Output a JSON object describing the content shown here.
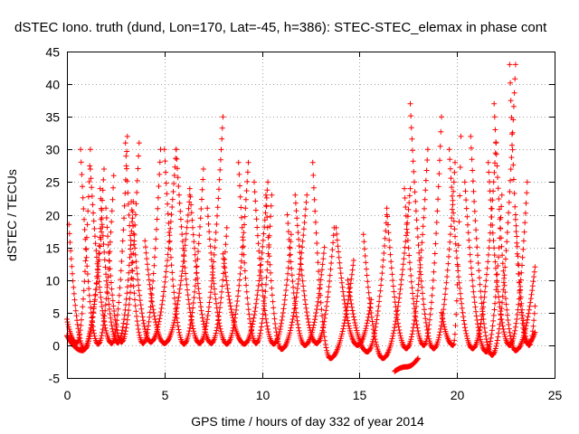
{
  "chart_data": {
    "type": "scatter",
    "title": "dSTEC Iono. truth (dund, Lon=170, Lat=-45, h=386): STEC-STEC_elemax in phase cont",
    "xlabel": "GPS time / hours of day 332 of year 2014",
    "ylabel": "dSTEC  / TECUs",
    "xlim": [
      0,
      25
    ],
    "ylim": [
      -5,
      45
    ],
    "xticks": [
      "0",
      "5",
      "10",
      "15",
      "20",
      "25"
    ],
    "yticks": [
      "-5",
      "0",
      "5",
      "10",
      "15",
      "20",
      "25",
      "30",
      "35",
      "40",
      "45"
    ],
    "grid": true,
    "marker": "+",
    "color": "#ff0000",
    "arcs": [
      [
        0.0,
        4,
        0.5,
        0.3,
        1.2,
        30
      ],
      [
        0.0,
        1.5,
        0.8,
        -0.8,
        1.8,
        18.5
      ],
      [
        0.1,
        18.5,
        0.9,
        -0.6,
        1.9,
        27
      ],
      [
        0.7,
        30,
        1.6,
        0.2,
        2.4,
        26
      ],
      [
        1.2,
        27,
        2.3,
        0.3,
        3.1,
        32
      ],
      [
        1.7,
        24,
        2.6,
        0.4,
        3.4,
        22
      ],
      [
        2.0,
        21,
        2.8,
        0.5,
        3.7,
        31
      ],
      [
        3.0,
        31,
        3.9,
        0.3,
        4.8,
        30
      ],
      [
        3.3,
        22,
        4.3,
        0.5,
        5.6,
        30
      ],
      [
        4.0,
        16,
        5.0,
        0.3,
        6.3,
        23
      ],
      [
        5.0,
        30,
        6.0,
        0.2,
        7.0,
        27
      ],
      [
        5.6,
        30,
        6.8,
        0.3,
        8.0,
        35
      ],
      [
        6.3,
        24,
        7.4,
        0.3,
        8.2,
        18
      ],
      [
        7.2,
        21,
        8.2,
        0.2,
        9.3,
        28
      ],
      [
        8.0,
        14,
        9.1,
        0.2,
        10.3,
        25
      ],
      [
        8.8,
        28,
        9.7,
        0.3,
        10.5,
        23
      ],
      [
        9.6,
        25,
        10.6,
        0.2,
        11.5,
        17
      ],
      [
        10.2,
        23,
        11.0,
        -0.6,
        12.3,
        23
      ],
      [
        11.3,
        20,
        12.2,
        0.0,
        13.2,
        15
      ],
      [
        11.7,
        23,
        12.8,
        0.3,
        13.7,
        18
      ],
      [
        12.6,
        28,
        13.5,
        -2.0,
        14.7,
        13
      ],
      [
        13.8,
        18,
        14.9,
        0.0,
        15.6,
        7
      ],
      [
        14.4,
        10,
        15.4,
        -1.0,
        16.4,
        20
      ],
      [
        15.2,
        17,
        16.2,
        -2.0,
        17.6,
        24
      ],
      [
        16.4,
        21,
        17.4,
        -0.5,
        18.5,
        30
      ],
      [
        16.8,
        -4,
        17.4,
        -3.3,
        18.0,
        -2
      ],
      [
        17.3,
        24,
        18.3,
        0.0,
        19.2,
        35
      ],
      [
        17.6,
        37,
        18.8,
        -0.5,
        19.9,
        28
      ],
      [
        19.2,
        5,
        19.8,
        0.0,
        20.2,
        32
      ],
      [
        19.6,
        30,
        20.8,
        -0.5,
        22.0,
        31
      ],
      [
        20.4,
        25,
        21.5,
        -1.0,
        22.3,
        23
      ],
      [
        20.7,
        32,
        21.8,
        -1.5,
        23.0,
        43
      ],
      [
        21.6,
        28,
        22.7,
        0.0,
        23.6,
        25
      ],
      [
        21.9,
        37,
        23.0,
        -0.8,
        24.0,
        12
      ],
      [
        22.7,
        43,
        23.6,
        0.3,
        24.0,
        2
      ],
      [
        23.0,
        20,
        23.7,
        0.0,
        24.0,
        6
      ]
    ]
  }
}
